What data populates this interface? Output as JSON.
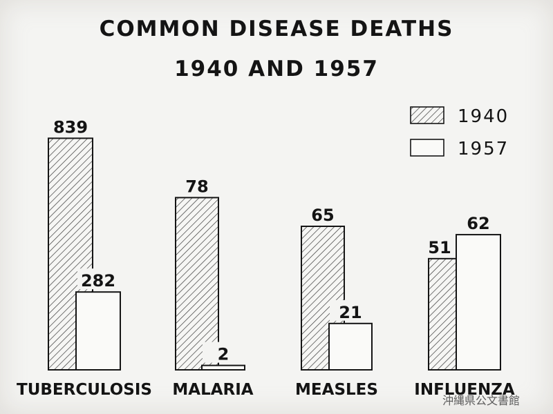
{
  "chart_data": {
    "type": "bar",
    "title": "COMMON DISEASE DEATHS",
    "subtitle": "1940 AND 1957",
    "categories": [
      "TUBERCULOSIS",
      "MALARIA",
      "MEASLES",
      "INFLUENZA"
    ],
    "series": [
      {
        "name": "1940",
        "values": [
          839,
          78,
          65,
          51
        ],
        "fill": "hatched"
      },
      {
        "name": "1957",
        "values": [
          282,
          2,
          21,
          62
        ],
        "fill": "white"
      }
    ],
    "xlabel": "",
    "ylabel": "",
    "grid": false,
    "legend": "top-right",
    "note": "bars drawn on a non-uniform scale per category"
  },
  "watermark": "沖縄県公文書館",
  "colors": {
    "ink": "#141414",
    "paper": "#f4f4f2"
  }
}
